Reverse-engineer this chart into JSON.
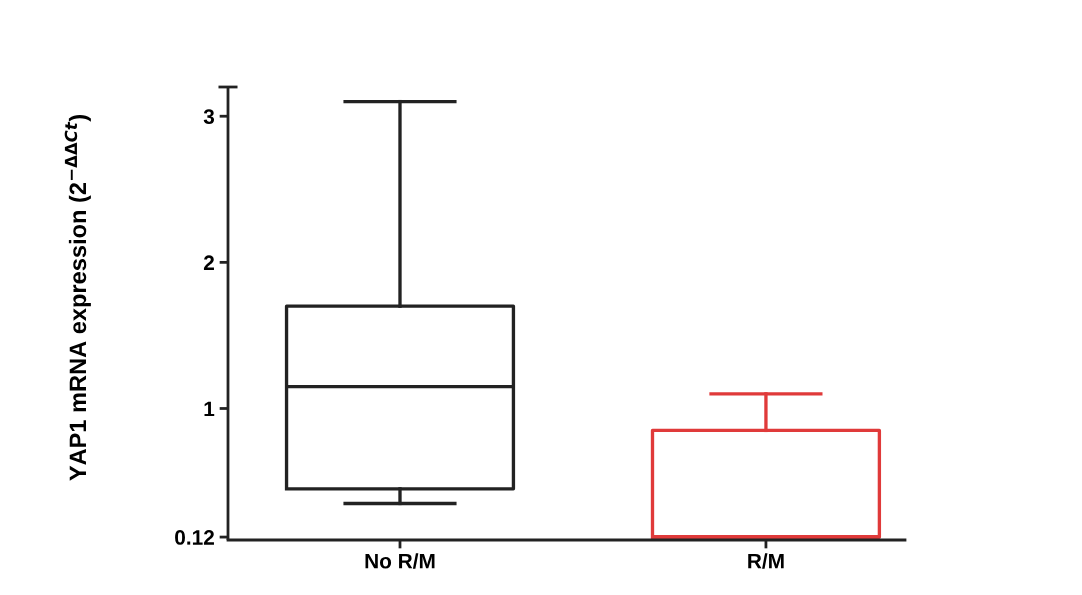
{
  "chart_data": {
    "type": "box",
    "ylabel": "YAP1 mRNA expression (2$^{−ΔΔCt}$)",
    "categories": [
      "No R/M",
      "R/M"
    ],
    "ylim": [
      0.1,
      3.2
    ],
    "yticks": [
      0.12,
      1,
      2,
      3
    ],
    "colors": [
      "#222222",
      "#e03a3a"
    ],
    "boxes": [
      {
        "low": 0.35,
        "q1": 0.45,
        "median": 1.15,
        "q3": 1.7,
        "high": 3.1
      },
      {
        "low": 0.116,
        "q1": 0.118,
        "median": 0.122,
        "q3": 0.85,
        "high": 1.1
      }
    ]
  }
}
